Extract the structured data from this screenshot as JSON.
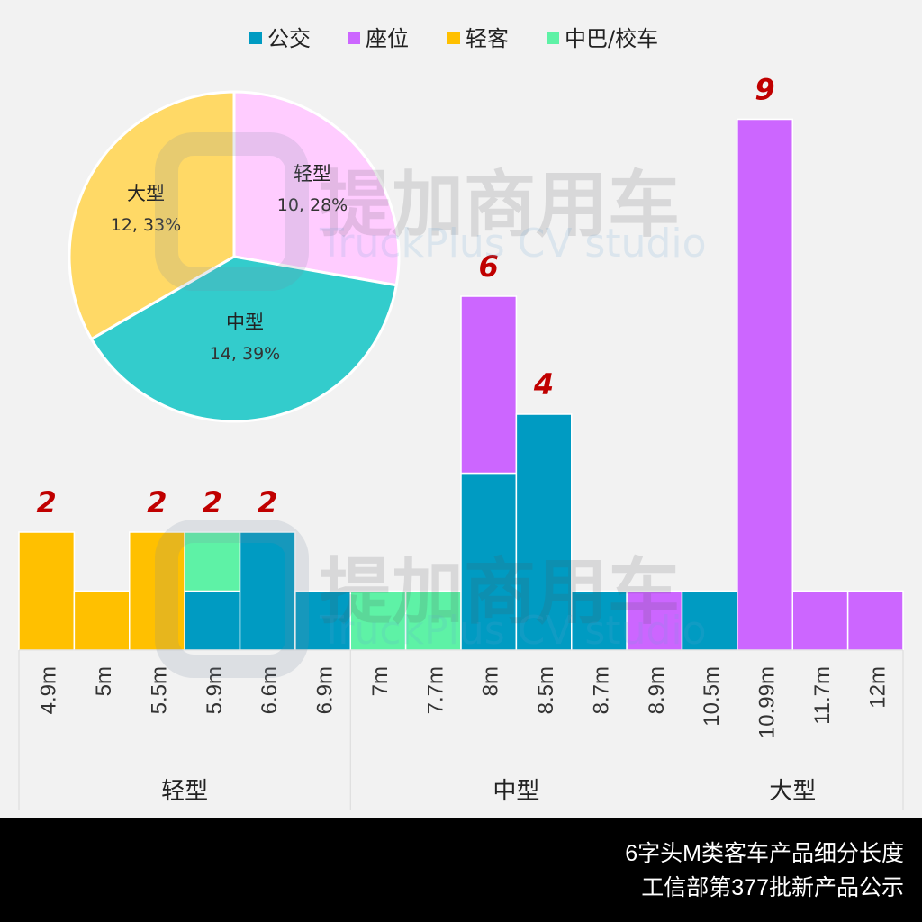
{
  "chart_data": {
    "type": "bar",
    "stacked": true,
    "legend_position": "top",
    "legend": [
      "公交",
      "座位",
      "轻客",
      "中巴/校车"
    ],
    "colors": {
      "公交": "#009bc2",
      "座位": "#cc66ff",
      "轻客": "#ffc000",
      "中巴/校车": "#5ef2a6"
    },
    "categories": [
      "4.9m",
      "5m",
      "5.5m",
      "5.9m",
      "6.6m",
      "6.9m",
      "7m",
      "7.7m",
      "8m",
      "8.5m",
      "8.7m",
      "8.9m",
      "10.5m",
      "10.99m",
      "11.7m",
      "12m"
    ],
    "groups": [
      {
        "label": "轻型",
        "count": 6
      },
      {
        "label": "中型",
        "count": 6
      },
      {
        "label": "大型",
        "count": 4
      }
    ],
    "series": [
      {
        "name": "公交",
        "values": [
          0,
          0,
          0,
          1,
          2,
          1,
          0,
          0,
          3,
          4,
          1,
          0,
          1,
          0,
          0,
          0
        ]
      },
      {
        "name": "中巴/校车",
        "values": [
          0,
          0,
          0,
          1,
          0,
          0,
          1,
          1,
          0,
          0,
          0,
          0,
          0,
          0,
          0,
          0
        ]
      },
      {
        "name": "轻客",
        "values": [
          2,
          1,
          2,
          0,
          0,
          0,
          0,
          0,
          0,
          0,
          0,
          0,
          0,
          0,
          0,
          0
        ]
      },
      {
        "name": "座位",
        "values": [
          0,
          0,
          0,
          0,
          0,
          0,
          0,
          0,
          3,
          0,
          0,
          1,
          0,
          9,
          1,
          1
        ]
      }
    ],
    "data_labels": {
      "4.9m": "2",
      "5.5m": "2",
      "5.9m": "2",
      "6.6m": "2",
      "8m": "6",
      "8.5m": "4",
      "10.99m": "9"
    },
    "ylim": [
      0,
      10
    ],
    "pie": {
      "slices": [
        {
          "name": "轻型",
          "value": 10,
          "percent": "28%",
          "label": "10, 28%",
          "color": "#ffccff"
        },
        {
          "name": "中型",
          "value": 14,
          "percent": "39%",
          "label": "14, 39%",
          "color": "#33cccc"
        },
        {
          "name": "大型",
          "value": 12,
          "percent": "33%",
          "label": "12, 33%",
          "color": "#ffd966"
        }
      ]
    },
    "watermark": {
      "cn": "提加商用车",
      "en": "TruckPlus CV studio"
    }
  },
  "footer": {
    "line1": "6字头M类客车产品细分长度",
    "line2": "工信部第377批新产品公示"
  }
}
